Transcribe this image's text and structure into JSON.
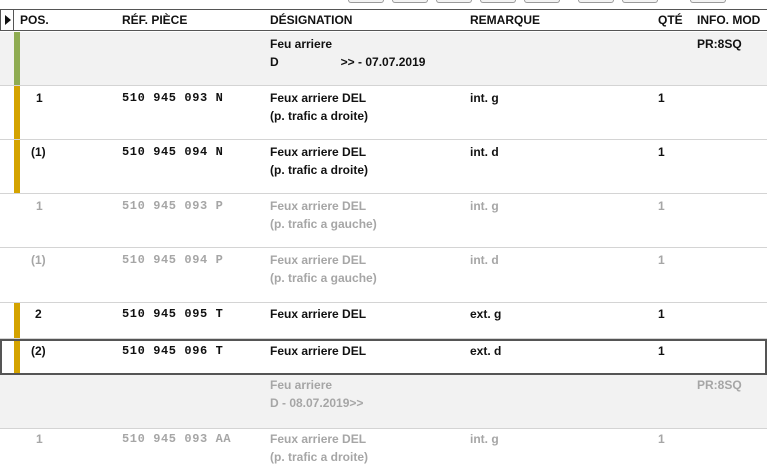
{
  "columns": {
    "pos": "POS.",
    "ref": "RÉF. PIÈCE",
    "designation": "DÉSIGNATION",
    "remarque": "REMARQUE",
    "qte": "QTÉ",
    "info": "INFO. MOD"
  },
  "colors": {
    "green_bar": "#8fac52",
    "gold_bar": "#d4a300",
    "dim_text": "#a6a6a6",
    "gray_row": "#f2f2f2"
  },
  "rows": [
    {
      "pos": "",
      "ref": "",
      "des1": "Feu arriere",
      "des2a": "D",
      "des2b": ">> - 07.07.2019",
      "rem": "",
      "qte": "",
      "info": "PR:8SQ"
    },
    {
      "pos": "1",
      "ref": "510 945 093 N",
      "des1": "Feux arriere DEL",
      "des2": "(p. trafic a droite)",
      "rem": "int. g",
      "qte": "1",
      "info": ""
    },
    {
      "pos": "(1)",
      "ref": "510 945 094 N",
      "des1": "Feux arriere DEL",
      "des2": "(p. trafic a droite)",
      "rem": "int. d",
      "qte": "1",
      "info": ""
    },
    {
      "pos": "1",
      "ref": "510 945 093 P",
      "des1": "Feux arriere DEL",
      "des2": "(p. trafic a gauche)",
      "rem": "int. g",
      "qte": "1",
      "info": ""
    },
    {
      "pos": "(1)",
      "ref": "510 945 094 P",
      "des1": "Feux arriere DEL",
      "des2": "(p. trafic a gauche)",
      "rem": "int. d",
      "qte": "1",
      "info": ""
    },
    {
      "pos": "2",
      "ref": "510 945 095 T",
      "des1": "Feux arriere DEL",
      "des2": "",
      "rem": "ext. g",
      "qte": "1",
      "info": ""
    },
    {
      "pos": "(2)",
      "ref": "510 945 096 T",
      "des1": "Feux arriere DEL",
      "des2": "",
      "rem": "ext. d",
      "qte": "1",
      "info": ""
    },
    {
      "pos": "",
      "ref": "",
      "des1": "Feu arriere",
      "des2": "D - 08.07.2019>>",
      "rem": "",
      "qte": "",
      "info": "PR:8SQ"
    },
    {
      "pos": "1",
      "ref": "510 945 093 AA",
      "des1": "Feux arriere DEL",
      "des2": "(p. trafic a droite)",
      "rem": "int. g",
      "qte": "1",
      "info": ""
    }
  ]
}
